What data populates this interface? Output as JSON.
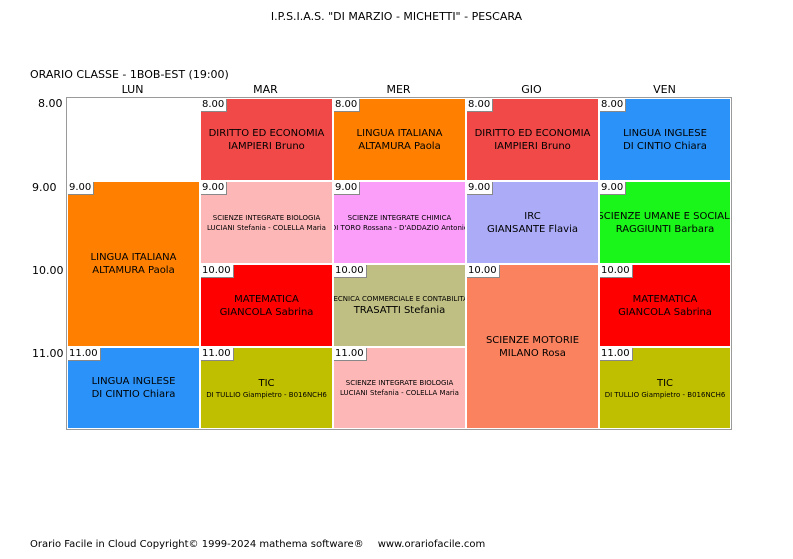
{
  "header": {
    "school": "I.P.S.I.A.S. \"DI MARZIO - MICHETTI\" - PESCARA",
    "class_label": "ORARIO CLASSE   -   1BOB-EST  (19:00)"
  },
  "days": [
    "LUN",
    "MAR",
    "MER",
    "GIO",
    "VEN"
  ],
  "hours": [
    "8.00",
    "9.00",
    "10.00",
    "11.00"
  ],
  "lessons": {
    "mar_8": {
      "time": "8.00",
      "subject": "DIRITTO ED ECONOMIA",
      "teacher": "IAMPIERI Bruno",
      "color": "#F14848"
    },
    "mer_8": {
      "time": "8.00",
      "subject": "LINGUA ITALIANA",
      "teacher": "ALTAMURA Paola",
      "color": "#FF8000"
    },
    "gio_8": {
      "time": "8.00",
      "subject": "DIRITTO ED ECONOMIA",
      "teacher": "IAMPIERI Bruno",
      "color": "#F14848"
    },
    "ven_8": {
      "time": "8.00",
      "subject": "LINGUA INGLESE",
      "teacher": "DI CINTIO Chiara",
      "color": "#2A92F8"
    },
    "lun_9": {
      "time": "9.00",
      "subject": "LINGUA ITALIANA",
      "teacher": "ALTAMURA Paola",
      "color": "#FF8000"
    },
    "mar_9": {
      "time": "9.00",
      "subject": "SCIENZE INTEGRATE  BIOLOGIA",
      "teacher": "LUCIANI Stefania - COLELLA Maria",
      "color": "#FDB7B7"
    },
    "mer_9": {
      "time": "9.00",
      "subject": "SCIENZE INTEGRATE CHIMICA",
      "teacher": "DI TORO Rossana - D'ADDAZIO Antonio",
      "color": "#FA9EFA"
    },
    "gio_9": {
      "time": "9.00",
      "subject": "IRC",
      "teacher": "GIANSANTE Flavia",
      "color": "#ABABF7"
    },
    "ven_9": {
      "time": "9.00",
      "subject": "SCIENZE UMANE E SOCIALI",
      "teacher": "RAGGIUNTI Barbara",
      "color": "#1AF51A"
    },
    "mar_10": {
      "time": "10.00",
      "subject": "MATEMATICA",
      "teacher": "GIANCOLA Sabrina",
      "color": "#FF0000"
    },
    "mer_10": {
      "time": "10.00",
      "subject": "TECNICA COMMERCIALE E CONTABILITA'",
      "teacher": "TRASATTI Stefania",
      "color": "#BFBF83"
    },
    "gio_10": {
      "time": "10.00",
      "subject": "SCIENZE MOTORIE",
      "teacher": "MILANO Rosa",
      "color": "#FB825E"
    },
    "ven_10": {
      "time": "10.00",
      "subject": "MATEMATICA",
      "teacher": "GIANCOLA Sabrina",
      "color": "#FF0000"
    },
    "lun_11": {
      "time": "11.00",
      "subject": "LINGUA INGLESE",
      "teacher": "DI CINTIO Chiara",
      "color": "#2A92F8"
    },
    "mar_11": {
      "time": "11.00",
      "subject": "TIC",
      "teacher": "DI TULLIO Giampietro - B016NCH6",
      "color": "#BFBF00"
    },
    "mer_11": {
      "time": "11.00",
      "subject": "SCIENZE INTEGRATE  BIOLOGIA",
      "teacher": "LUCIANI Stefania - COLELLA Maria",
      "color": "#FDB7B7"
    },
    "ven_11": {
      "time": "11.00",
      "subject": "TIC",
      "teacher": "DI TULLIO Giampietro - B016NCH6",
      "color": "#BFBF00"
    }
  },
  "footer": {
    "copyright": "Orario Facile in Cloud  Copyright© 1999-2024 mathema software®",
    "website": "www.orariofacile.com"
  }
}
